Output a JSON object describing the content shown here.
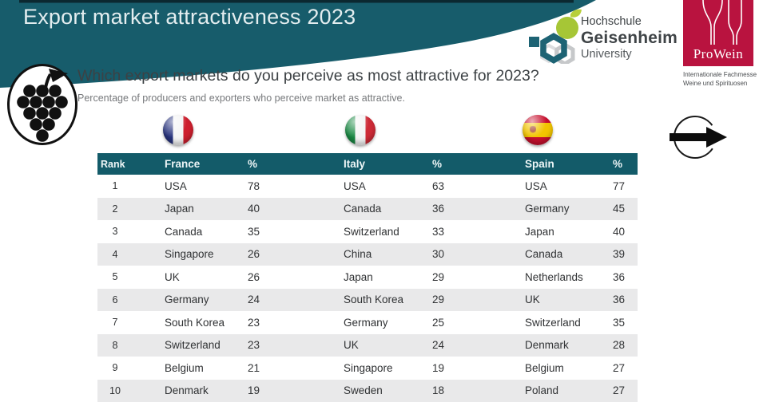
{
  "slide": {
    "title": "Export market attractiveness 2023",
    "question": "Which export markets do you perceive as most attractive for 2023?",
    "subtitle": "Percentage of producers and exporters who perceive market as attractive."
  },
  "logos": {
    "geisenheim": {
      "line1": "Hochschule",
      "line2": "Geisenheim",
      "line3": "University"
    },
    "prowein": {
      "name": "ProWein",
      "caption_line1": "Internationale Fachmesse",
      "caption_line2": "Weine und Spirituosen"
    }
  },
  "colors": {
    "banner_teal": "#175c6b",
    "banner_top_strip": "#0b2830",
    "table_header_teal": "#135b69",
    "row_alt_gray": "#e9e9ea",
    "prowein_red": "#b9133f",
    "geisenheim_green": "#a6c636",
    "geisenheim_teal": "#1d6374"
  },
  "icons": {
    "grape": "grape-bunch-icon",
    "arrow": "next-arrow-icon",
    "flags": [
      "france-flag-icon",
      "italy-flag-icon",
      "spain-flag-icon"
    ]
  },
  "table": {
    "headers": [
      "Rank",
      "France",
      "%",
      "Italy",
      "%",
      "Spain",
      "%"
    ],
    "rows": [
      [
        "1",
        "USA",
        "78",
        "USA",
        "63",
        "USA",
        "77"
      ],
      [
        "2",
        "Japan",
        "40",
        "Canada",
        "36",
        "Germany",
        "45"
      ],
      [
        "3",
        "Canada",
        "35",
        "Switzerland",
        "33",
        "Japan",
        "40"
      ],
      [
        "4",
        "Singapore",
        "26",
        "China",
        "30",
        "Canada",
        "39"
      ],
      [
        "5",
        "UK",
        "26",
        "Japan",
        "29",
        "Netherlands",
        "36"
      ],
      [
        "6",
        "Germany",
        "24",
        "South Korea",
        "29",
        "UK",
        "36"
      ],
      [
        "7",
        "South Korea",
        "23",
        "Germany",
        "25",
        "Switzerland",
        "35"
      ],
      [
        "8",
        "Switzerland",
        "23",
        "UK",
        "24",
        "Denmark",
        "28"
      ],
      [
        "9",
        "Belgium",
        "21",
        "Singapore",
        "19",
        "Belgium",
        "27"
      ],
      [
        "10",
        "Denmark",
        "19",
        "Sweden",
        "18",
        "Poland",
        "27"
      ]
    ]
  },
  "chart_data": {
    "type": "table",
    "title": "Export market attractiveness 2023",
    "subtitle": "Which export markets do you perceive as most attractive for 2023?",
    "unit": "Percentage of producers and exporters who perceive market as attractive",
    "categories": [
      1,
      2,
      3,
      4,
      5,
      6,
      7,
      8,
      9,
      10
    ],
    "series": [
      {
        "name": "France",
        "markets": [
          "USA",
          "Japan",
          "Canada",
          "Singapore",
          "UK",
          "Germany",
          "South Korea",
          "Switzerland",
          "Belgium",
          "Denmark"
        ],
        "values": [
          78,
          40,
          35,
          26,
          26,
          24,
          23,
          23,
          21,
          19
        ]
      },
      {
        "name": "Italy",
        "markets": [
          "USA",
          "Canada",
          "Switzerland",
          "China",
          "Japan",
          "South Korea",
          "Germany",
          "UK",
          "Singapore",
          "Sweden"
        ],
        "values": [
          63,
          36,
          33,
          30,
          29,
          29,
          25,
          24,
          19,
          18
        ]
      },
      {
        "name": "Spain",
        "markets": [
          "USA",
          "Germany",
          "Japan",
          "Canada",
          "Netherlands",
          "UK",
          "Switzerland",
          "Denmark",
          "Belgium",
          "Poland"
        ],
        "values": [
          77,
          45,
          40,
          39,
          36,
          36,
          35,
          28,
          27,
          27
        ]
      }
    ]
  }
}
